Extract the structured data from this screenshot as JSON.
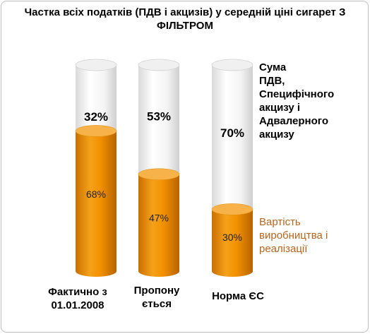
{
  "title": "Частка всіх податків (ПДВ і акцизів) у середній ціні сигарет З ФІЛЬТРОМ",
  "chart_data": {
    "type": "bar",
    "stacked": "100%",
    "categories": [
      "Фактично з\n01.01.2008",
      "Пропону\nється",
      "Норма ЄС"
    ],
    "series": [
      {
        "name": "Вартість виробництва і реалізації",
        "values": [
          68,
          47,
          30
        ],
        "labels": [
          "68%",
          "47%",
          "30%"
        ],
        "color": "#f29200"
      },
      {
        "name": "Сума ПДВ, Специфічного акцизу і Адвалерного акцизу",
        "values": [
          32,
          53,
          70
        ],
        "labels": [
          "32%",
          "53%",
          "70%"
        ],
        "color": "#ffffff"
      }
    ],
    "ylim": [
      0,
      100
    ],
    "grid": false,
    "legend": "right"
  },
  "legend_text": {
    "top": "Сума\nПДВ,\nСпецифічного\nакцизу і\nАдвалерного\nакцизу",
    "bottom": "Вартість\nвиробництва і\nреалізації"
  }
}
